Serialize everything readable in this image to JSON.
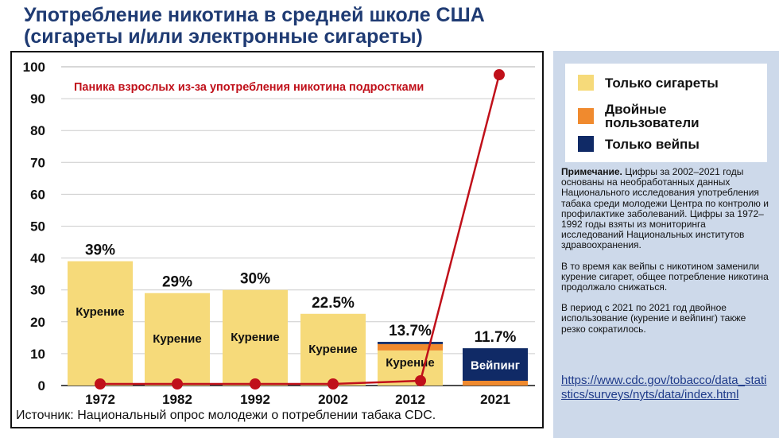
{
  "title_line1": "Употребление никотина в средней школе США",
  "title_line2": "(сигареты и/или электронные сигареты)",
  "source": "Источник: Национальный опрос молодежи о потреблении табака CDC.",
  "legend": [
    {
      "label": "Только сигареты",
      "color": "#f6da7a"
    },
    {
      "label": "Двойные пользователи",
      "color": "#f08a2e"
    },
    {
      "label": "Только вейпы",
      "color": "#102a66"
    }
  ],
  "notes": {
    "bold": "Примечание.",
    "p1": " Цифры за 2002–2021 годы основаны на необработанных данных Национального исследования употребления табака среди молодежи Центра по контролю и профилактике заболеваний. Цифры за 1972–1992 годы взяты из мониторинга исследований Национальных институтов здравоохранения.",
    "p2": "В то время как вейпы с никотином заменили курение сигарет, общее потребление никотина продолжало снижаться.",
    "p3": "В период с 2021 по 2021 год двойное использование (курение и вейпинг) также резко сократилось."
  },
  "link": "https://www.cdc.gov/tobacco/data_statistics/surveys/nyts/data/index.html",
  "chart_data": {
    "type": "bar",
    "categories": [
      "1972",
      "1982",
      "1992",
      "2002",
      "2012",
      "2021"
    ],
    "series": [
      {
        "name": "Только сигареты",
        "values": [
          39,
          29,
          30,
          22.5,
          11,
          0
        ],
        "color": "#f6da7a"
      },
      {
        "name": "Двойные пользователи",
        "values": [
          0,
          0,
          0,
          0,
          2,
          1.5
        ],
        "color": "#f08a2e"
      },
      {
        "name": "Только вейпы",
        "values": [
          0,
          0,
          0,
          0,
          0.7,
          10.2
        ],
        "color": "#102a66"
      }
    ],
    "totals_labels": [
      "39%",
      "29%",
      "30%",
      "22.5%",
      "13.7%",
      "11.7%"
    ],
    "bar_labels": [
      "Курение",
      "Курение",
      "Курение",
      "Курение",
      "Курение",
      "Вейпинг"
    ],
    "line": {
      "name": "Паника взрослых из-за употребления никотина подростками",
      "values": [
        0.5,
        0.5,
        0.5,
        0.5,
        1.5,
        97.5
      ],
      "color": "#c0101a"
    },
    "ylim": [
      0,
      100
    ],
    "yticks": [
      0,
      10,
      20,
      30,
      40,
      50,
      60,
      70,
      80,
      90,
      100
    ],
    "grid": true
  }
}
